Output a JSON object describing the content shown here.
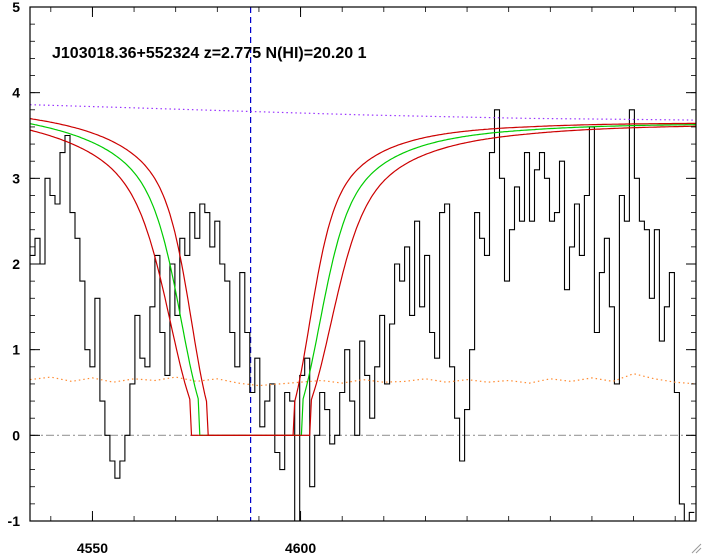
{
  "chart_data": {
    "type": "line",
    "title": "J103018.36+552324 z=2.775 N(HI)=20.20 1",
    "xlabel": "",
    "ylabel": "",
    "xlim": [
      4535,
      4695
    ],
    "ylim": [
      -1,
      5
    ],
    "x_ticks": [
      4550,
      4600
    ],
    "y_ticks": [
      -1,
      0,
      1,
      2,
      3,
      4,
      5
    ],
    "grid": false,
    "legend": "none",
    "absorber_center": 4588,
    "series": [
      {
        "role": "flux",
        "color": "#000000",
        "style": "steps",
        "x": [
          4535.0,
          4536.2,
          4537.4,
          4538.6,
          4539.8,
          4541.0,
          4542.2,
          4543.4,
          4544.6,
          4545.8,
          4547.0,
          4548.2,
          4549.4,
          4550.6,
          4551.8,
          4553.0,
          4554.2,
          4555.4,
          4556.6,
          4557.8,
          4559.0,
          4560.2,
          4561.4,
          4562.6,
          4563.8,
          4565.0,
          4566.2,
          4567.4,
          4568.6,
          4569.8,
          4571.0,
          4572.2,
          4573.4,
          4574.6,
          4575.8,
          4577.0,
          4578.2,
          4579.4,
          4580.6,
          4581.8,
          4583.0,
          4584.2,
          4585.4,
          4586.6,
          4587.8,
          4589.0,
          4590.2,
          4591.4,
          4592.6,
          4593.8,
          4595.0,
          4596.2,
          4597.4,
          4598.6,
          4599.8,
          4601.0,
          4602.2,
          4603.4,
          4604.6,
          4605.8,
          4607.0,
          4608.2,
          4609.4,
          4610.6,
          4611.8,
          4613.0,
          4614.2,
          4615.4,
          4616.6,
          4617.8,
          4619.0,
          4620.2,
          4621.4,
          4622.6,
          4623.8,
          4625.0,
          4626.2,
          4627.4,
          4628.6,
          4629.8,
          4631.0,
          4632.2,
          4633.4,
          4634.6,
          4635.8,
          4637.0,
          4638.2,
          4639.4,
          4640.6,
          4641.8,
          4643.0,
          4644.2,
          4645.4,
          4646.6,
          4647.8,
          4649.0,
          4650.2,
          4651.4,
          4652.6,
          4653.8,
          4655.0,
          4656.2,
          4657.4,
          4658.6,
          4659.8,
          4661.0,
          4662.2,
          4663.4,
          4664.6,
          4665.8,
          4667.0,
          4668.2,
          4669.4,
          4670.6,
          4671.8,
          4673.0,
          4674.2,
          4675.4,
          4676.6,
          4677.8,
          4679.0,
          4680.2,
          4681.4,
          4682.6,
          4683.8,
          4685.0,
          4686.2,
          4687.4,
          4688.6,
          4689.8,
          4691.0,
          4692.2,
          4693.4
        ],
        "values": [
          2.1,
          2.3,
          2.0,
          3.0,
          2.8,
          2.7,
          3.3,
          3.5,
          2.6,
          2.3,
          1.8,
          1.0,
          0.8,
          1.6,
          0.4,
          0.0,
          -0.3,
          -0.5,
          -0.3,
          0.0,
          0.6,
          1.4,
          0.9,
          0.8,
          1.5,
          2.1,
          1.2,
          0.7,
          2.0,
          1.4,
          2.3,
          2.1,
          2.6,
          2.3,
          2.7,
          2.6,
          2.2,
          2.5,
          2.0,
          1.8,
          1.2,
          0.8,
          1.9,
          1.2,
          0.5,
          0.9,
          0.1,
          0.4,
          0.6,
          -0.2,
          -0.4,
          0.5,
          0.4,
          -1.1,
          0.7,
          0.9,
          -0.6,
          0.0,
          0.5,
          0.3,
          -0.1,
          0.0,
          0.5,
          1.0,
          0.4,
          0.0,
          1.1,
          0.7,
          0.2,
          0.8,
          1.4,
          0.6,
          1.3,
          2.0,
          1.8,
          2.2,
          1.4,
          2.5,
          1.5,
          2.1,
          1.2,
          0.9,
          2.6,
          2.7,
          0.8,
          0.2,
          -0.3,
          0.3,
          1.0,
          2.6,
          2.3,
          2.1,
          3.3,
          3.8,
          3.0,
          1.8,
          2.4,
          2.9,
          2.5,
          3.3,
          2.5,
          3.1,
          3.3,
          3.0,
          2.5,
          2.6,
          3.2,
          1.7,
          2.2,
          2.7,
          2.1,
          2.8,
          3.6,
          1.2,
          1.9,
          2.3,
          1.5,
          0.6,
          2.8,
          2.5,
          3.8,
          3.0,
          2.5,
          2.4,
          1.6,
          2.4,
          1.1,
          1.5,
          1.9,
          0.5,
          -0.8,
          -1.0,
          -0.9
        ]
      },
      {
        "role": "continuum",
        "color": "#9933ff",
        "style": "dotted",
        "x": [
          4535,
          4555,
          4575,
          4595,
          4615,
          4635,
          4655,
          4675,
          4695
        ],
        "values": [
          3.86,
          3.83,
          3.8,
          3.77,
          3.74,
          3.72,
          3.7,
          3.69,
          3.68
        ]
      },
      {
        "role": "error",
        "color": "#ff8c33",
        "style": "dotted",
        "x": [
          4535,
          4540,
          4545,
          4550,
          4555,
          4560,
          4565,
          4570,
          4575,
          4580,
          4585,
          4590,
          4595,
          4600,
          4605,
          4610,
          4615,
          4620,
          4625,
          4630,
          4635,
          4640,
          4645,
          4650,
          4655,
          4660,
          4665,
          4670,
          4675,
          4680,
          4685,
          4690,
          4695
        ],
        "values": [
          0.65,
          0.68,
          0.63,
          0.67,
          0.62,
          0.66,
          0.64,
          0.68,
          0.63,
          0.66,
          0.61,
          0.58,
          0.6,
          0.62,
          0.64,
          0.61,
          0.65,
          0.62,
          0.63,
          0.66,
          0.62,
          0.65,
          0.62,
          0.64,
          0.61,
          0.66,
          0.63,
          0.67,
          0.63,
          0.72,
          0.66,
          0.62,
          0.6
        ]
      },
      {
        "role": "model-best",
        "color": "#00cc00",
        "style": "solid",
        "log_nhi": 20.2,
        "half_width": 12.3
      },
      {
        "role": "model-upper",
        "color": "#cc0000",
        "style": "solid",
        "log_nhi": 20.3,
        "half_width": 14.3
      },
      {
        "role": "model-lower",
        "color": "#cc0000",
        "style": "solid",
        "log_nhi": 20.1,
        "half_width": 10.5
      }
    ],
    "reference_lines": [
      {
        "role": "zero-level",
        "value": 0,
        "color": "#999999",
        "style": "dash-dot"
      },
      {
        "role": "line-center",
        "axis": "x",
        "value": 4588,
        "color": "#0000cc",
        "style": "dashed"
      }
    ]
  }
}
